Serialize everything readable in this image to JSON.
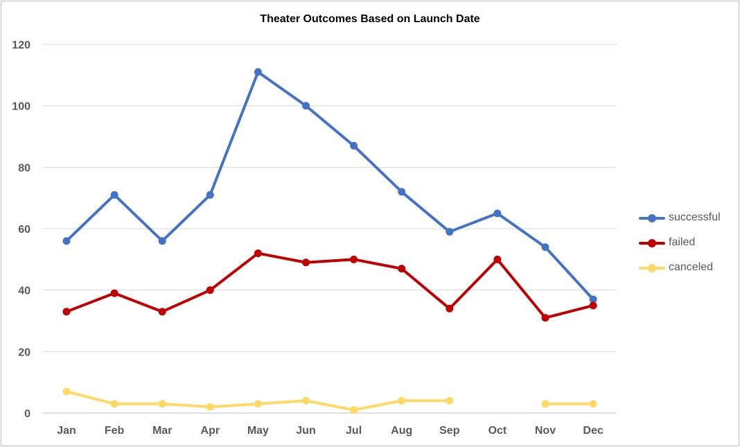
{
  "chart_data": {
    "type": "line",
    "title": "Theater Outcomes Based on Launch Date",
    "xlabel": "",
    "ylabel": "",
    "categories": [
      "Jan",
      "Feb",
      "Mar",
      "Apr",
      "May",
      "Jun",
      "Jul",
      "Aug",
      "Sep",
      "Oct",
      "Nov",
      "Dec"
    ],
    "ylim": [
      0,
      120
    ],
    "yticks": [
      "0",
      "20",
      "40",
      "60",
      "80",
      "100",
      "120"
    ],
    "grid": true,
    "legend_position": "right",
    "series": [
      {
        "name": "successful",
        "color": "#4472C4",
        "values": [
          56,
          71,
          56,
          71,
          111,
          100,
          87,
          72,
          59,
          65,
          54,
          37
        ]
      },
      {
        "name": "failed",
        "color": "#C00000",
        "values": [
          33,
          39,
          33,
          40,
          52,
          49,
          50,
          47,
          34,
          50,
          31,
          35
        ]
      },
      {
        "name": "canceled",
        "color": "#FFD966",
        "values": [
          7,
          3,
          3,
          2,
          3,
          4,
          1,
          4,
          4,
          null,
          3,
          3
        ]
      }
    ]
  }
}
